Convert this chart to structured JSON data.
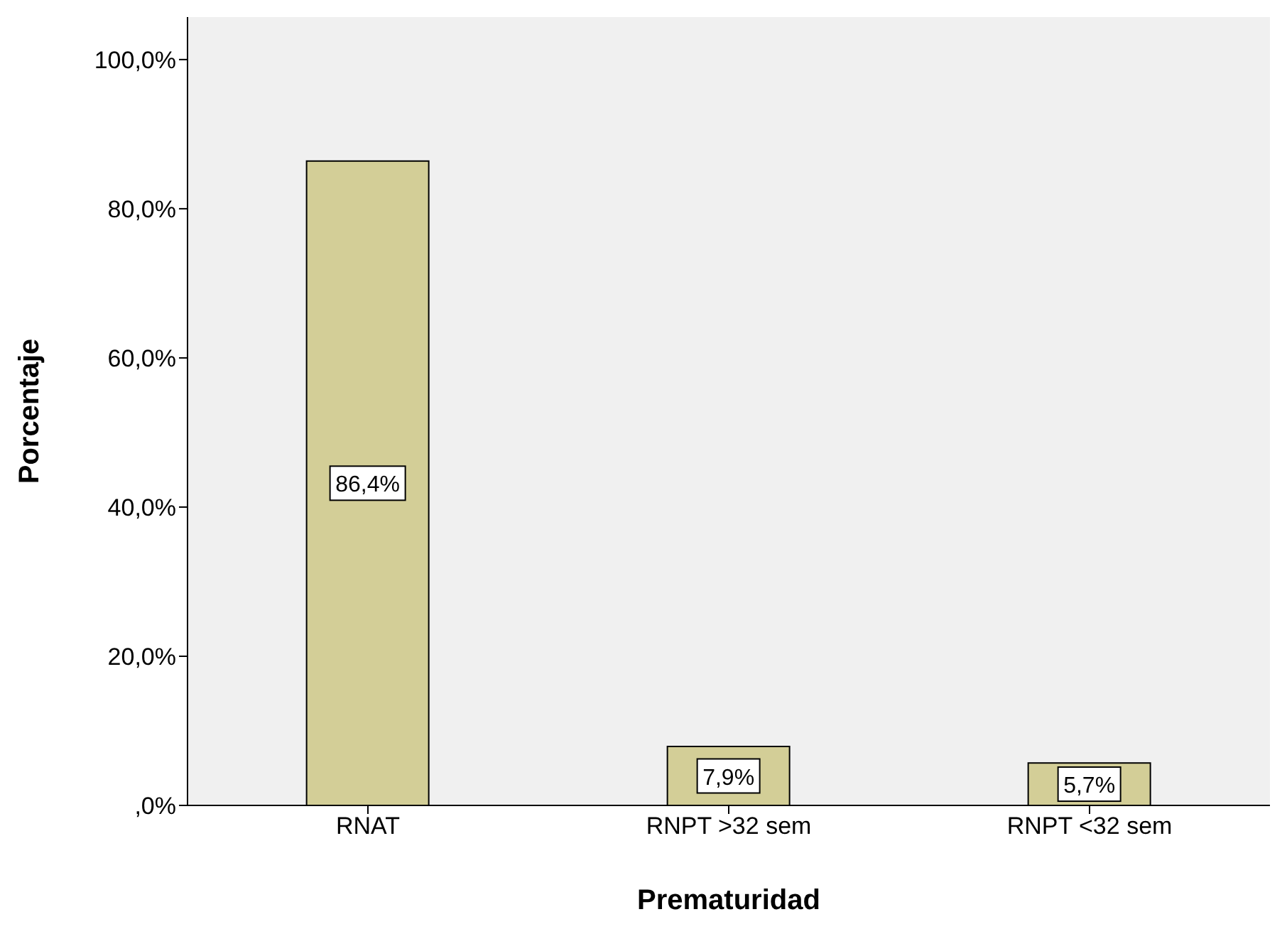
{
  "chart_data": {
    "type": "bar",
    "xlabel": "Prematuridad",
    "ylabel": "Porcentaje",
    "categories": [
      "RNAT",
      "RNPT >32 sem",
      "RNPT <32 sem"
    ],
    "values": [
      86.4,
      7.9,
      5.7
    ],
    "color": "#d3ce97",
    "value_labels": [
      "86,4%",
      "7,9%",
      "5,7%"
    ],
    "ylim": [
      0,
      105.7
    ],
    "yticks": [
      {
        "value": 0,
        "label": ",0%"
      },
      {
        "value": 20,
        "label": "20,0%"
      },
      {
        "value": 40,
        "label": "40,0%"
      },
      {
        "value": 60,
        "label": "60,0%"
      },
      {
        "value": 80,
        "label": "80,0%"
      },
      {
        "value": 100,
        "label": "100,0%"
      }
    ],
    "grid": false
  }
}
